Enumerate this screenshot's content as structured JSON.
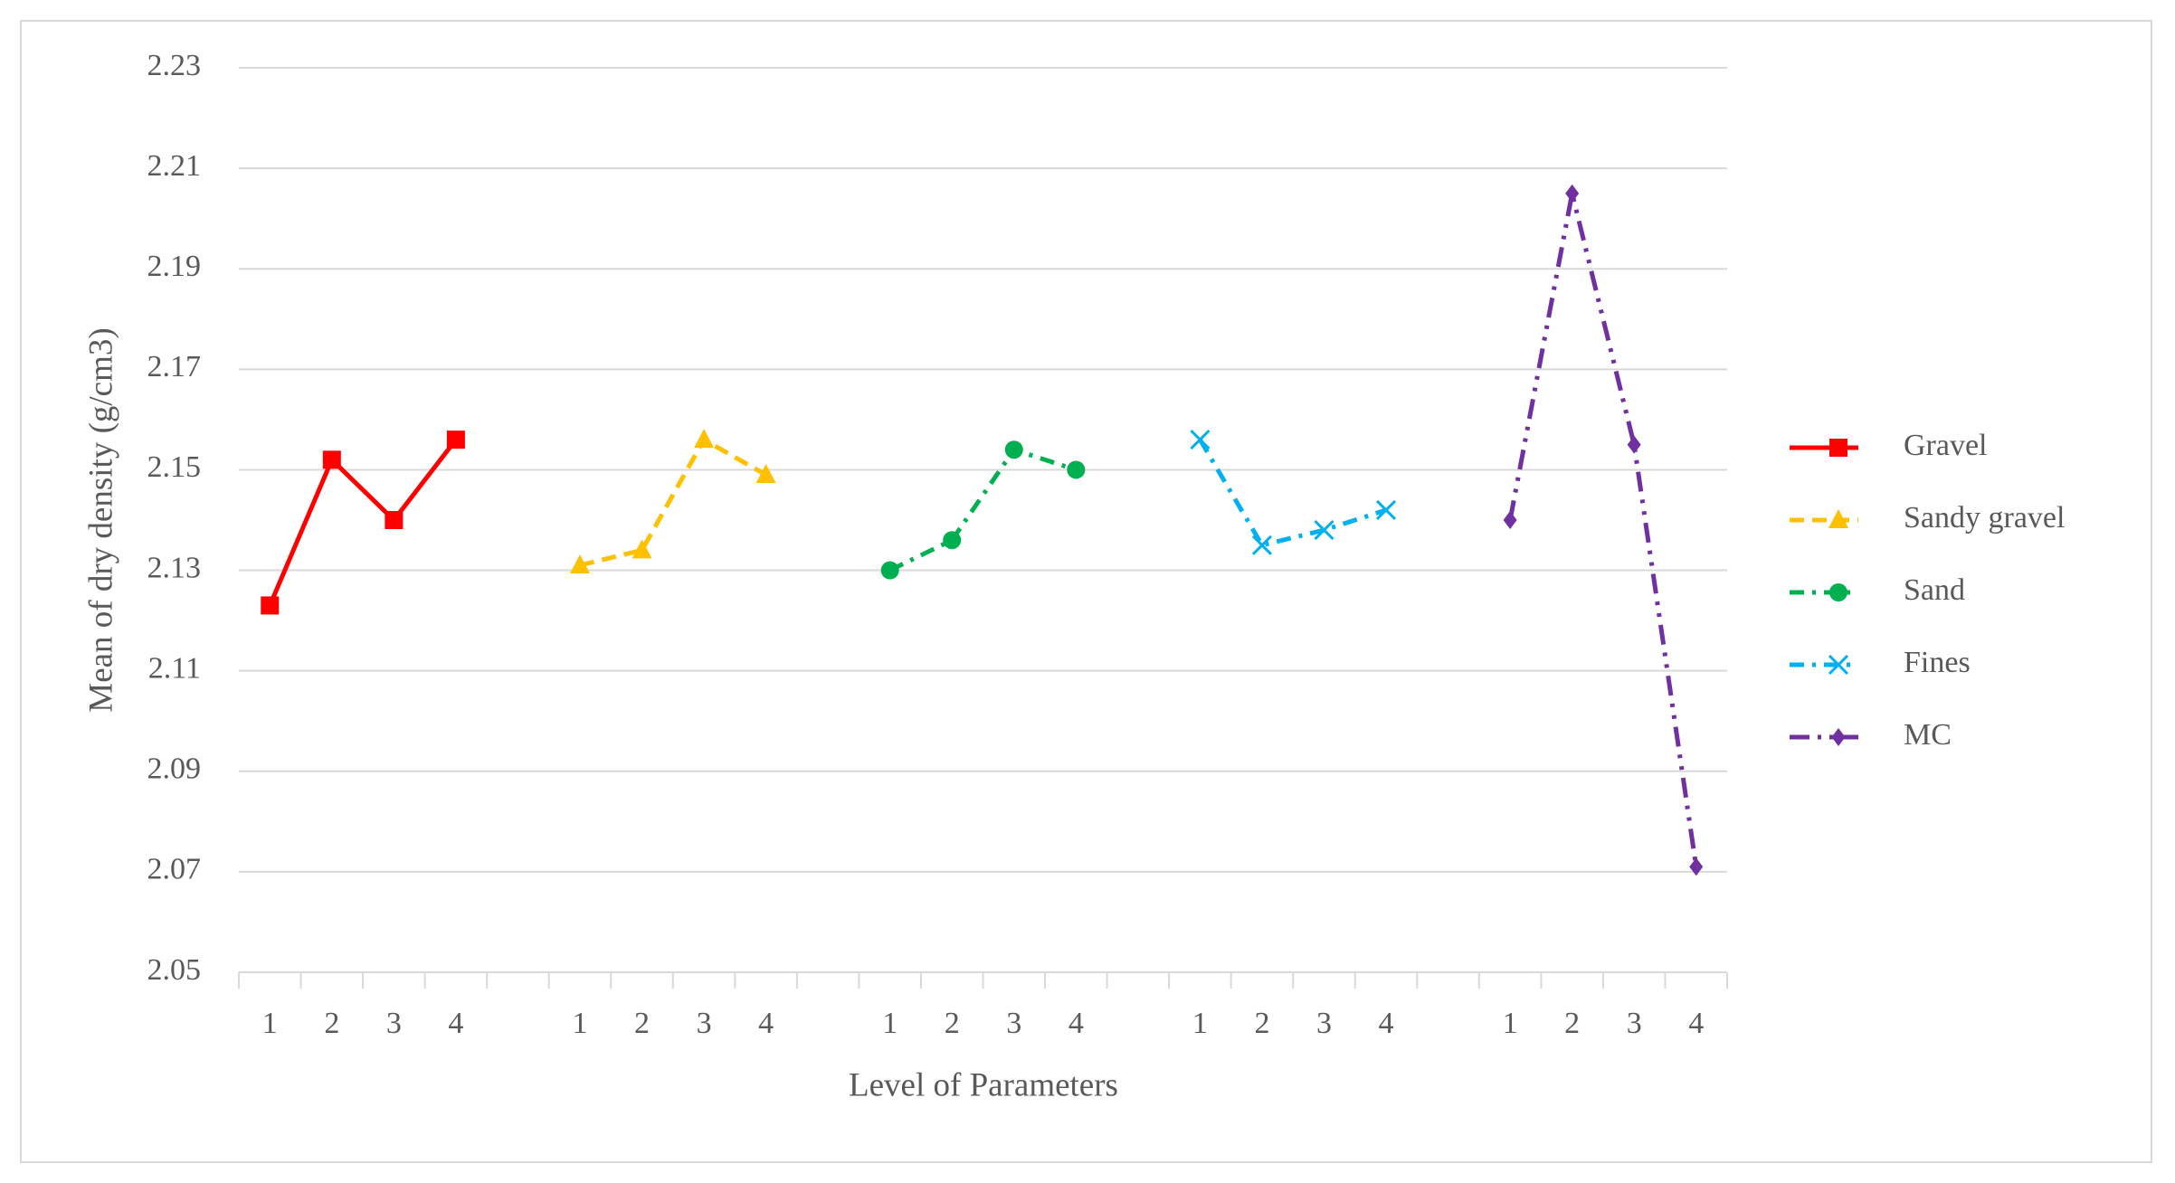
{
  "chart_data": {
    "type": "line",
    "categories": [
      "1",
      "2",
      "3",
      "4",
      null,
      "1",
      "2",
      "3",
      "4",
      null,
      "1",
      "2",
      "3",
      "4",
      null,
      "1",
      "2",
      "3",
      "4",
      null,
      "1",
      "2",
      "3",
      "4"
    ],
    "series": [
      {
        "name": "Gravel",
        "color": "#ff0000",
        "marker": "square",
        "dash": "solid",
        "values": [
          2.123,
          2.152,
          2.14,
          2.156,
          null,
          null,
          null,
          null,
          null,
          null,
          null,
          null,
          null,
          null,
          null,
          null,
          null,
          null,
          null,
          null,
          null,
          null,
          null,
          null
        ]
      },
      {
        "name": "Sandy gravel",
        "color": "#ffc000",
        "marker": "triangle",
        "dash": "dash",
        "values": [
          null,
          null,
          null,
          null,
          null,
          2.131,
          2.134,
          2.156,
          2.149,
          null,
          null,
          null,
          null,
          null,
          null,
          null,
          null,
          null,
          null,
          null,
          null,
          null,
          null,
          null
        ]
      },
      {
        "name": "Sand",
        "color": "#00b050",
        "marker": "circle",
        "dash": "dashdot",
        "values": [
          null,
          null,
          null,
          null,
          null,
          null,
          null,
          null,
          null,
          null,
          2.13,
          2.136,
          2.154,
          2.15,
          null,
          null,
          null,
          null,
          null,
          null,
          null,
          null,
          null,
          null
        ]
      },
      {
        "name": "Fines",
        "color": "#00b0f0",
        "marker": "x",
        "dash": "dashdot",
        "values": [
          null,
          null,
          null,
          null,
          null,
          null,
          null,
          null,
          null,
          null,
          null,
          null,
          null,
          null,
          null,
          2.156,
          2.135,
          2.138,
          2.142,
          null,
          null,
          null,
          null,
          null
        ]
      },
      {
        "name": "MC",
        "color": "#7030a0",
        "marker": "diamond",
        "dash": "dashdotdot",
        "values": [
          null,
          null,
          null,
          null,
          null,
          null,
          null,
          null,
          null,
          null,
          null,
          null,
          null,
          null,
          null,
          null,
          null,
          null,
          null,
          null,
          2.14,
          2.205,
          2.155,
          2.071
        ]
      }
    ],
    "xlabel": "Level of Parameters",
    "ylabel": "Mean of dry density (g/cm3)",
    "ylim": [
      2.05,
      2.23
    ],
    "yticks": [
      2.05,
      2.07,
      2.09,
      2.11,
      2.13,
      2.15,
      2.17,
      2.19,
      2.21,
      2.23
    ],
    "grid": true,
    "legend": "right"
  }
}
